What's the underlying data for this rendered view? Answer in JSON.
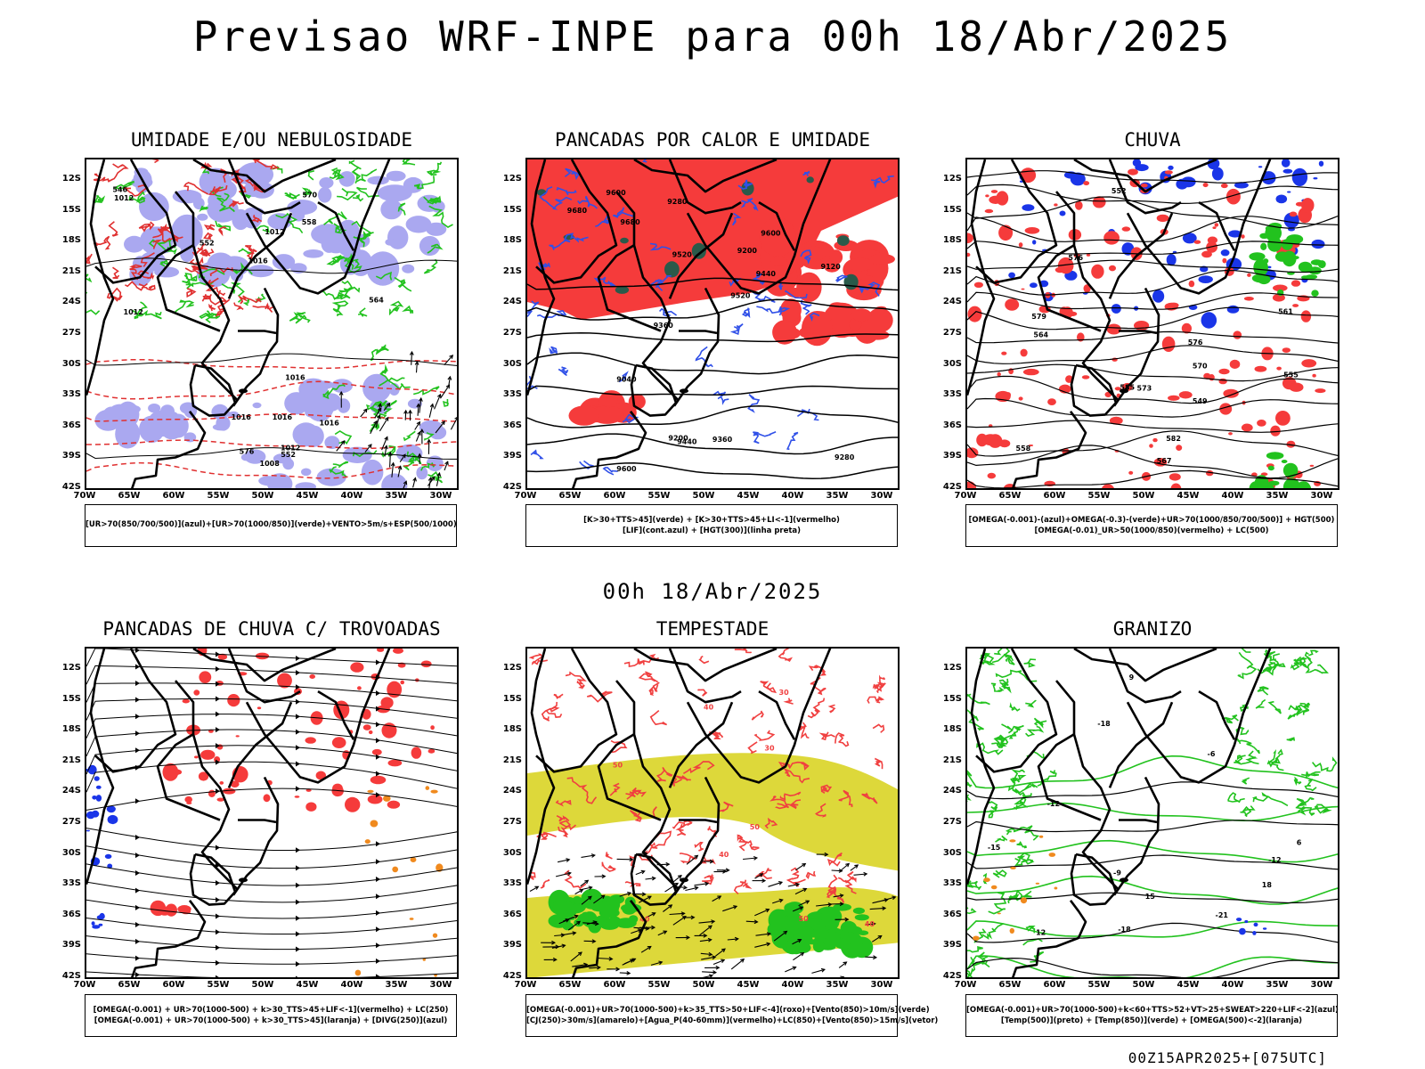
{
  "header": {
    "title": "Previsao WRF-INPE  para 00h 18/Abr/2025",
    "mid_title": "00h 18/Abr/2025",
    "footer": "00Z15APR2025+[075UTC]"
  },
  "axes": {
    "lat_labels": [
      "12S",
      "15S",
      "18S",
      "21S",
      "24S",
      "27S",
      "30S",
      "33S",
      "36S",
      "39S",
      "42S"
    ],
    "lon_labels": [
      "70W",
      "65W",
      "60W",
      "55W",
      "50W",
      "45W",
      "40W",
      "35W",
      "30W"
    ]
  },
  "panels": [
    {
      "title": "UMIDADE E/OU NEBULOSIDADE",
      "legend": [
        "[UR>70(850/700/500)](azul)+[UR>70(1000/850)](verde)+VENTO>5m/s+ESP(500/1000)"
      ],
      "contour_labels": [
        "1012",
        "1012",
        "1012",
        "1016",
        "1016",
        "1016",
        "1016",
        "1016",
        "1012",
        "1008",
        "552",
        "564",
        "570",
        "576",
        "546",
        "552",
        "558"
      ],
      "colors": {
        "fill": "#aaa8f0",
        "line": "#22c21e",
        "contour": "#e03030"
      }
    },
    {
      "title": "PANCADAS POR CALOR E UMIDADE",
      "legend": [
        "[K>30+TTS>45](verde) + [K>30+TTS>45+LI<-1](vermelho)",
        "[LIF](cont.azul) + [HGT(300)](linha preta)"
      ],
      "contour_labels": [
        "9680",
        "9680",
        "9600",
        "9600",
        "9520",
        "9520",
        "9440",
        "9440",
        "9360",
        "9360",
        "9280",
        "9280",
        "9200",
        "9200",
        "9120",
        "9040",
        "9600"
      ],
      "colors": {
        "fill": "#f53b3b",
        "line": "#3050e8",
        "contour": "#000000",
        "green": "#2a5a4a"
      }
    },
    {
      "title": "CHUVA",
      "legend": [
        "[OMEGA(-0.001)-(azul)+OMEGA(-0.3)-(verde)+UR>70(1000/850/700/500)] + HGT(500)",
        "[OMEGA(-0.01)_UR>50(1000/850)(vermelho) + LC(500)"
      ],
      "contour_labels": [
        "582",
        "576",
        "576",
        "573",
        "570",
        "567",
        "564",
        "561",
        "558",
        "555",
        "552",
        "549",
        "579",
        "585"
      ],
      "colors": {
        "fill": "#f53b3b",
        "blue": "#1a35e8",
        "green": "#22c21e",
        "contour": "#000000"
      }
    },
    {
      "title": "PANCADAS DE CHUVA C/ TROVOADAS",
      "legend": [
        "[OMEGA(-0.001) + UR>70(1000-500) + k>30_TTS>45+LIF<-1](vermelho) + LC(250)",
        "[OMEGA(-0.001) + UR>70(1000-500) + k>30_TTS>45](laranja) + [DIVG(250)](azul)"
      ],
      "contour_labels": [],
      "colors": {
        "fill": "#f53b3b",
        "orange": "#f08a1e",
        "blue": "#1a35e8",
        "contour": "#000000"
      }
    },
    {
      "title": "TEMPESTADE",
      "legend": [
        "[OMEGA(-0.001)+UR>70(1000-500)+k>35_TTS>50+LIF<-4](roxo)+[Vento(850)>10m/s](verde)",
        "[CJ(250)>30m/s](amarelo)+[Agua_P(40-60mm)](vermelho)+LC(850)+[Vento(850)>15m/s](vetor)"
      ],
      "contour_labels": [
        "50",
        "40",
        "50",
        "50",
        "40",
        "40",
        "40",
        "30",
        "30"
      ],
      "colors": {
        "fill": "#ddd83a",
        "red": "#f04040",
        "green": "#22c21e",
        "contour": "#000000"
      }
    },
    {
      "title": "GRANIZO",
      "legend": [
        "[OMEGA(-0.001)+UR>70(1000-500)+k<60+TTS>52+VT>25+SWEAT>220+LIF<-2](azul)",
        "[Temp(500)](preto) + [Temp(850)](verde) + [OMEGA(500)<-2](laranja)"
      ],
      "contour_labels": [
        "-6",
        "-9",
        "-12",
        "-12",
        "-15",
        "-18",
        "-18",
        "-21",
        "12",
        "15",
        "18",
        "9",
        "6"
      ],
      "colors": {
        "green": "#22c21e",
        "orange": "#f08a1e",
        "blue": "#1a35e8",
        "contour": "#000000"
      }
    }
  ]
}
